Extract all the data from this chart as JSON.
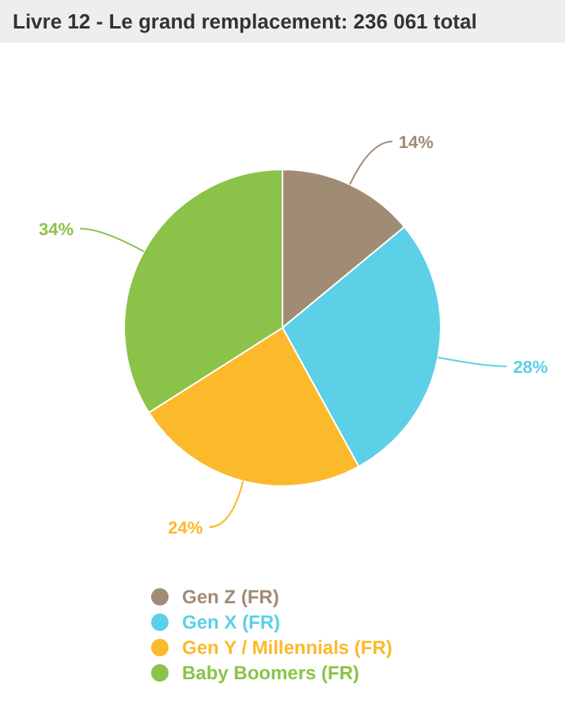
{
  "chart_data": {
    "type": "pie",
    "title": "Livre 12 - Le grand remplacement: 236 061 total",
    "categories": [
      "Gen Z (FR)",
      "Gen X (FR)",
      "Gen Y / Millennials (FR)",
      "Baby Boomers (FR)"
    ],
    "values": [
      14,
      28,
      24,
      34
    ],
    "colors": [
      "#a08c74",
      "#5bd0e6",
      "#fbb92b",
      "#8bc34a"
    ],
    "value_labels": [
      "14%",
      "28%",
      "24%",
      "34%"
    ],
    "legend": "bottom left"
  }
}
